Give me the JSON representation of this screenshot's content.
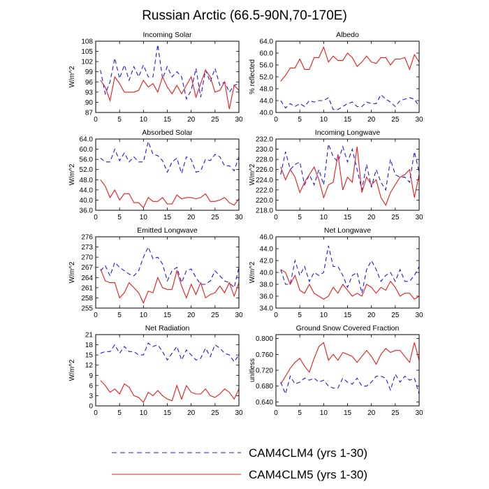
{
  "title": "Russian Arctic (66.5-90N,70-170E)",
  "colors": {
    "clm4": "#1a1aee",
    "clm5": "#ee1a1a",
    "axis": "#000000"
  },
  "legend": [
    {
      "label": "CAM4CLM4 (yrs 1-30)",
      "style": "dashed",
      "color": "#1a1aee"
    },
    {
      "label": "CAM4CLM5 (yrs 1-30)",
      "style": "solid",
      "color": "#ee1a1a"
    }
  ],
  "chart_data": [
    {
      "type": "line",
      "title": "Incoming Solar",
      "ylabel": "W/m^2",
      "xlabel": "",
      "xlim": [
        0,
        30
      ],
      "ylim": [
        87,
        108
      ],
      "yticks": [
        "87",
        "90",
        "93",
        "96",
        "99",
        "102",
        "105",
        "108"
      ],
      "xticks": [
        "0",
        "5",
        "10",
        "15",
        "20",
        "25",
        "30"
      ],
      "x": [
        1,
        2,
        3,
        4,
        5,
        6,
        7,
        8,
        9,
        10,
        11,
        12,
        13,
        14,
        15,
        16,
        17,
        18,
        19,
        20,
        21,
        22,
        23,
        24,
        25,
        26,
        27,
        28,
        29,
        30
      ],
      "series": [
        {
          "name": "CAM4CLM4 (yrs 1-30)",
          "values": [
            99.5,
            92.5,
            96,
            103,
            97,
            101,
            96.5,
            100.5,
            97.5,
            101,
            97.5,
            97.5,
            107,
            97,
            100.5,
            97.5,
            99,
            97.5,
            91,
            93.5,
            100,
            91.5,
            99.5,
            96,
            100,
            95,
            96,
            93,
            95,
            95.5
          ]
        },
        {
          "name": "CAM4CLM5 (yrs 1-30)",
          "values": [
            96.5,
            94.5,
            90.5,
            97.5,
            95.5,
            93,
            93,
            93,
            93.5,
            96.5,
            94.5,
            95.5,
            93,
            97.5,
            94.5,
            92.5,
            95,
            92.5,
            95,
            97.5,
            91.5,
            95.5,
            99.5,
            97.5,
            93,
            93.5,
            96,
            88,
            95,
            93.5
          ]
        }
      ]
    },
    {
      "type": "line",
      "title": "Albedo",
      "ylabel": "% reflected",
      "xlabel": "",
      "xlim": [
        0,
        30
      ],
      "ylim": [
        40,
        64
      ],
      "yticks": [
        "40.0",
        "44.0",
        "48.0",
        "52.0",
        "56.0",
        "60.0",
        "64.0"
      ],
      "xticks": [
        "0",
        "5",
        "10",
        "15",
        "20",
        "25",
        "30"
      ],
      "x": [
        1,
        2,
        3,
        4,
        5,
        6,
        7,
        8,
        9,
        10,
        11,
        12,
        13,
        14,
        15,
        16,
        17,
        18,
        19,
        20,
        21,
        22,
        23,
        24,
        25,
        26,
        27,
        28,
        29,
        30
      ],
      "series": [
        {
          "name": "CAM4CLM4 (yrs 1-30)",
          "values": [
            44,
            41.5,
            43,
            42,
            43,
            42,
            44,
            43.5,
            44,
            44,
            45,
            41,
            41,
            42,
            43,
            43.5,
            42,
            42,
            43.5,
            43,
            43,
            46,
            44.5,
            43.5,
            42,
            44,
            44.5,
            45,
            44.5,
            42
          ]
        },
        {
          "name": "CAM4CLM5 (yrs 1-30)",
          "values": [
            50.5,
            52.5,
            55,
            55,
            58,
            54.5,
            54.5,
            58.5,
            58.5,
            62,
            57,
            59,
            57.5,
            57.5,
            60,
            58.5,
            55.5,
            57,
            59,
            57,
            56.5,
            58.5,
            58.5,
            56,
            58,
            58,
            58.5,
            54.5,
            59.5,
            57
          ]
        }
      ]
    },
    {
      "type": "line",
      "title": "Absorbed Solar",
      "ylabel": "W/m^2",
      "xlabel": "",
      "xlim": [
        0,
        30
      ],
      "ylim": [
        36,
        64
      ],
      "yticks": [
        "36.0",
        "40.0",
        "44.0",
        "48.0",
        "52.0",
        "56.0",
        "60.0",
        "64.0"
      ],
      "xticks": [
        "0",
        "5",
        "10",
        "15",
        "20",
        "25",
        "30"
      ],
      "x": [
        1,
        2,
        3,
        4,
        5,
        6,
        7,
        8,
        9,
        10,
        11,
        12,
        13,
        14,
        15,
        16,
        17,
        18,
        19,
        20,
        21,
        22,
        23,
        24,
        25,
        26,
        27,
        28,
        29,
        30
      ],
      "series": [
        {
          "name": "CAM4CLM4 (yrs 1-30)",
          "values": [
            56.5,
            55,
            55,
            60,
            55.5,
            58.5,
            55,
            57,
            55,
            55,
            63,
            58,
            57.5,
            55.5,
            51,
            55,
            56.5,
            50.5,
            57,
            56,
            51,
            51.5,
            56,
            55.5,
            58,
            57,
            53.5,
            53.5,
            51.5,
            57
          ]
        },
        {
          "name": "CAM4CLM5 (yrs 1-30)",
          "values": [
            48,
            45.5,
            41,
            44,
            40,
            42.5,
            42.5,
            39,
            39,
            37,
            41,
            39.5,
            39.5,
            41,
            38.5,
            38.5,
            42,
            40.5,
            41,
            41,
            40.5,
            41,
            42.5,
            39.5,
            39.5,
            40,
            41,
            39,
            38,
            40.5
          ]
        }
      ]
    },
    {
      "type": "line",
      "title": "Incoming Longwave",
      "ylabel": "W/m^2",
      "xlabel": "",
      "xlim": [
        0,
        30
      ],
      "ylim": [
        218,
        232
      ],
      "yticks": [
        "218.0",
        "220.0",
        "222.0",
        "224.0",
        "226.0",
        "228.0",
        "230.0",
        "232.0"
      ],
      "xticks": [
        "0",
        "5",
        "10",
        "15",
        "20",
        "25",
        "30"
      ],
      "x": [
        1,
        2,
        3,
        4,
        5,
        6,
        7,
        8,
        9,
        10,
        11,
        12,
        13,
        14,
        15,
        16,
        17,
        18,
        19,
        20,
        21,
        22,
        23,
        24,
        25,
        26,
        27,
        28,
        29,
        30
      ],
      "series": [
        {
          "name": "CAM4CLM4 (yrs 1-30)",
          "values": [
            225,
            229.5,
            226,
            227,
            227.5,
            223,
            225,
            223,
            226,
            223,
            231,
            228.5,
            227.5,
            230.5,
            227.5,
            230,
            226,
            222,
            227,
            222.5,
            226,
            223.5,
            222,
            228,
            225,
            224.5,
            224.5,
            223.5,
            229.5,
            225.5
          ]
        },
        {
          "name": "CAM4CLM5 (yrs 1-30)",
          "values": [
            226.5,
            224,
            226,
            224.5,
            221.5,
            223.5,
            225,
            226.5,
            224,
            220.5,
            223,
            223.5,
            229,
            222,
            224.5,
            223.5,
            230.5,
            221.5,
            224.5,
            223,
            224,
            220.5,
            219,
            221.5,
            223,
            224.5,
            225,
            226,
            220.5,
            225
          ]
        }
      ]
    },
    {
      "type": "line",
      "title": "Emitted Longwave",
      "ylabel": "W/m^2",
      "xlabel": "",
      "xlim": [
        0,
        30
      ],
      "ylim": [
        255,
        276
      ],
      "yticks": [
        "255",
        "258",
        "261",
        "264",
        "267",
        "270",
        "273",
        "276"
      ],
      "xticks": [
        "0",
        "5",
        "10",
        "15",
        "20",
        "25",
        "30"
      ],
      "x": [
        1,
        2,
        3,
        4,
        5,
        6,
        7,
        8,
        9,
        10,
        11,
        12,
        13,
        14,
        15,
        16,
        17,
        18,
        19,
        20,
        21,
        22,
        23,
        24,
        25,
        26,
        27,
        28,
        29,
        30
      ],
      "series": [
        {
          "name": "CAM4CLM4 (yrs 1-30)",
          "values": [
            266,
            267.5,
            264.5,
            268.5,
            267,
            266,
            265,
            264.5,
            266,
            270,
            273,
            269.5,
            270,
            268,
            263,
            266,
            267,
            262.5,
            266,
            266.5,
            264,
            262,
            262,
            263,
            266,
            264.5,
            263,
            262.5,
            261,
            267
          ]
        },
        {
          "name": "CAM4CLM5 (yrs 1-30)",
          "values": [
            266.5,
            263,
            262.5,
            262.5,
            258,
            259.5,
            262.5,
            261,
            259.5,
            256.5,
            260,
            259.5,
            264,
            261,
            260.5,
            260.5,
            266,
            261.5,
            258,
            262,
            259,
            262.5,
            258,
            259,
            259.5,
            261.5,
            259.5,
            262.5,
            258.5,
            262.5
          ]
        }
      ]
    },
    {
      "type": "line",
      "title": "Net Longwave",
      "ylabel": "W/m^2",
      "xlabel": "",
      "xlim": [
        0,
        30
      ],
      "ylim": [
        34,
        46
      ],
      "yticks": [
        "34.0",
        "36.0",
        "38.0",
        "40.0",
        "42.0",
        "44.0",
        "46.0"
      ],
      "xticks": [
        "0",
        "5",
        "10",
        "15",
        "20",
        "25",
        "30"
      ],
      "x": [
        1,
        2,
        3,
        4,
        5,
        6,
        7,
        8,
        9,
        10,
        11,
        12,
        13,
        14,
        15,
        16,
        17,
        18,
        19,
        20,
        21,
        22,
        23,
        24,
        25,
        26,
        27,
        28,
        29,
        30
      ],
      "series": [
        {
          "name": "CAM4CLM4 (yrs 1-30)",
          "values": [
            40.5,
            38,
            38,
            42,
            39.5,
            41,
            38.5,
            40,
            39.5,
            40,
            44.5,
            41,
            41,
            39.5,
            37.5,
            39.5,
            40,
            36.5,
            40.5,
            42,
            40.5,
            38.5,
            39.5,
            40,
            38.5,
            40.5,
            38.5,
            38.5,
            39.5,
            41
          ]
        },
        {
          "name": "CAM4CLM5 (yrs 1-30)",
          "values": [
            40.5,
            40,
            38,
            39.5,
            37,
            36.5,
            38,
            36.5,
            36,
            35.5,
            36,
            37.5,
            36.5,
            38,
            37,
            36,
            36.5,
            36,
            38,
            37.5,
            36.5,
            37.5,
            37,
            38.5,
            37.5,
            36,
            36.5,
            36.5,
            35.5,
            36
          ]
        }
      ]
    },
    {
      "type": "line",
      "title": "Net Radiation",
      "ylabel": "W/m^2",
      "xlabel": "",
      "xlim": [
        0,
        30
      ],
      "ylim": [
        0,
        21
      ],
      "yticks": [
        "0",
        "3",
        "6",
        "9",
        "12",
        "15",
        "18",
        "21"
      ],
      "xticks": [
        "0",
        "5",
        "10",
        "15",
        "20",
        "25",
        "30"
      ],
      "x": [
        1,
        2,
        3,
        4,
        5,
        6,
        7,
        8,
        9,
        10,
        11,
        12,
        13,
        14,
        15,
        16,
        17,
        18,
        19,
        20,
        21,
        22,
        23,
        24,
        25,
        26,
        27,
        28,
        29,
        30
      ],
      "series": [
        {
          "name": "CAM4CLM4 (yrs 1-30)",
          "values": [
            15.5,
            16,
            16,
            18,
            15.5,
            17.5,
            16,
            16,
            15,
            15,
            18.5,
            17.5,
            18,
            16,
            13.5,
            15.5,
            17.5,
            13.5,
            16.5,
            15,
            13.5,
            14,
            17,
            14.5,
            18,
            17,
            15.5,
            15,
            13,
            15
          ]
        },
        {
          "name": "CAM4CLM5 (yrs 1-30)",
          "values": [
            7.5,
            6,
            4,
            5,
            3.5,
            6.5,
            5.5,
            3,
            2.5,
            1,
            4,
            3,
            4.5,
            3,
            2,
            1.5,
            6,
            2,
            6,
            4,
            3.5,
            3.5,
            5,
            3,
            2.5,
            3.5,
            5,
            4,
            2,
            5
          ]
        }
      ]
    },
    {
      "type": "line",
      "title": "Ground Snow Covered Fraction",
      "ylabel": "unitless",
      "xlabel": "",
      "xlim": [
        0,
        30
      ],
      "ylim": [
        0.63,
        0.81
      ],
      "yticks": [
        "0.640",
        "0.680",
        "0.720",
        "0.760",
        "0.800"
      ],
      "xticks": [
        "0",
        "5",
        "10",
        "15",
        "20",
        "25",
        "30"
      ],
      "x": [
        1,
        2,
        3,
        4,
        5,
        6,
        7,
        8,
        9,
        10,
        11,
        12,
        13,
        14,
        15,
        16,
        17,
        18,
        19,
        20,
        21,
        22,
        23,
        24,
        25,
        26,
        27,
        28,
        29,
        30
      ],
      "series": [
        {
          "name": "CAM4CLM4 (yrs 1-30)",
          "values": [
            0.69,
            0.66,
            0.705,
            0.685,
            0.69,
            0.7,
            0.695,
            0.7,
            0.69,
            0.695,
            0.68,
            0.675,
            0.675,
            0.7,
            0.69,
            0.685,
            0.7,
            0.68,
            0.68,
            0.69,
            0.705,
            0.705,
            0.7,
            0.67,
            0.71,
            0.69,
            0.705,
            0.695,
            0.7,
            0.66
          ]
        },
        {
          "name": "CAM4CLM5 (yrs 1-30)",
          "values": [
            0.685,
            0.705,
            0.725,
            0.74,
            0.75,
            0.73,
            0.715,
            0.75,
            0.78,
            0.79,
            0.745,
            0.76,
            0.745,
            0.765,
            0.76,
            0.755,
            0.74,
            0.755,
            0.77,
            0.755,
            0.735,
            0.76,
            0.775,
            0.765,
            0.77,
            0.77,
            0.755,
            0.74,
            0.79,
            0.745
          ]
        }
      ]
    }
  ]
}
